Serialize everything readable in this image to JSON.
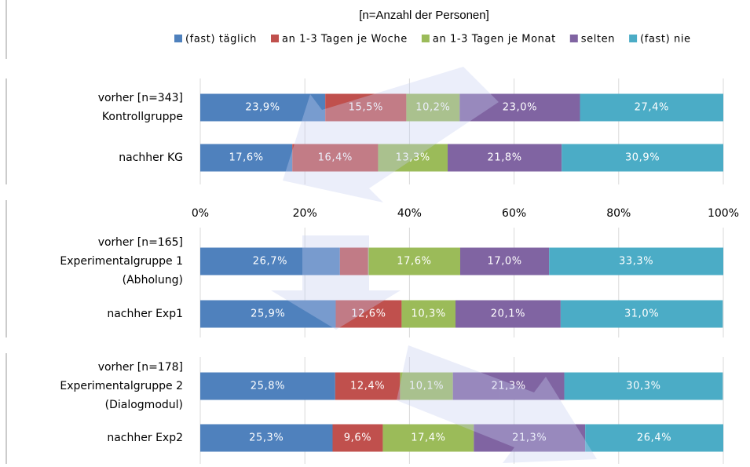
{
  "chart_data": {
    "type": "bar",
    "orientation": "horizontal",
    "stacked": true,
    "title": "[n=Anzahl der Personen]",
    "categories": [
      "vorher [n=343]\nKontrollgruppe",
      "nachher KG",
      "vorher [n=165]\nExperimentalgruppe 1\n(Abholung)",
      "nachher Exp1",
      "vorher [n=178]\nExperimentalgruppe 2\n(Dialogmodul)",
      "nachher Exp2"
    ],
    "series": [
      {
        "name": "(fast) täglich",
        "color": "#4f81bd",
        "values": [
          23.9,
          17.6,
          26.7,
          25.9,
          25.8,
          25.3
        ],
        "value_labels": [
          "23,9%",
          "17,6%",
          "26,7%",
          "25,9%",
          "25,8%",
          "25,3%"
        ]
      },
      {
        "name": "an 1-3 Tagen je Woche",
        "color": "#c0504d",
        "values": [
          15.5,
          16.4,
          5.4,
          12.6,
          12.4,
          9.6
        ],
        "value_labels": [
          "15,5%",
          "16,4%",
          null,
          "12,6%",
          "12,4%",
          "9,6%"
        ]
      },
      {
        "name": "an 1-3 Tagen je Monat",
        "color": "#9bbb59",
        "values": [
          10.2,
          13.3,
          17.6,
          10.3,
          10.1,
          17.4
        ],
        "value_labels": [
          "10,2%",
          "13,3%",
          "17,6%",
          "10,3%",
          "10,1%",
          "17,4%"
        ]
      },
      {
        "name": "selten",
        "color": "#8064a2",
        "values": [
          23.0,
          21.8,
          17.0,
          20.1,
          21.3,
          21.3
        ],
        "value_labels": [
          "23,0%",
          "21,8%",
          "17,0%",
          "20,1%",
          "21,3%",
          "21,3%"
        ]
      },
      {
        "name": "(fast) nie",
        "color": "#4bacc6",
        "values": [
          27.4,
          30.9,
          33.3,
          31.0,
          30.3,
          26.4
        ],
        "value_labels": [
          "27,4%",
          "30,9%",
          "33,3%",
          "31,0%",
          "30,3%",
          "26,4%"
        ]
      }
    ],
    "xlim": [
      0,
      100
    ],
    "xticks": [
      {
        "value": 0,
        "label": "0%"
      },
      {
        "value": 20,
        "label": "20%"
      },
      {
        "value": 40,
        "label": "40%"
      },
      {
        "value": 60,
        "label": "60%"
      },
      {
        "value": 80,
        "label": "80%"
      },
      {
        "value": 100,
        "label": "100%"
      }
    ],
    "grid": true,
    "legend": "top"
  }
}
